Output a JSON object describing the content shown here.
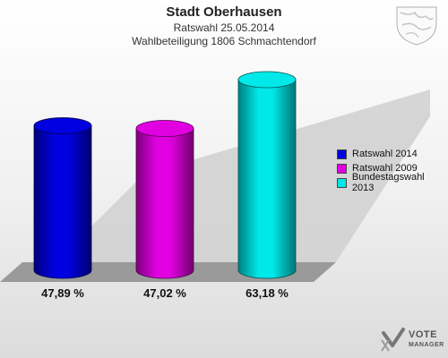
{
  "chart_data": {
    "type": "bar",
    "title": "Stadt Oberhausen",
    "subtitle_1": "Ratswahl 25.05.2014",
    "subtitle_2": "Wahlbeteiligung 1806 Schmachtendorf",
    "categories": [
      "Ratswahl 2014",
      "Ratswahl 2009",
      "Bundestagswahl 2013"
    ],
    "values": [
      47.89,
      47.02,
      63.18
    ],
    "value_labels": [
      "47,89 %",
      "47,02 %",
      "63,18 %"
    ],
    "colors": [
      "#0000e0",
      "#e000e0",
      "#00e8e8"
    ],
    "ylim": [
      0,
      70
    ],
    "legend_position": "right",
    "grid": false
  },
  "legend": {
    "items": [
      {
        "label": "Ratswahl 2014",
        "color": "#0000e0"
      },
      {
        "label": "Ratswahl 2009",
        "color": "#e000e0"
      },
      {
        "label": "Bundestagswahl 2013",
        "color": "#00e8e8"
      }
    ]
  },
  "branding": {
    "logo_text_1": "VOTE",
    "logo_text_2": "MANAGER",
    "logo_icon": "vote-manager-logo-icon",
    "crest_icon": "city-crest-icon"
  }
}
